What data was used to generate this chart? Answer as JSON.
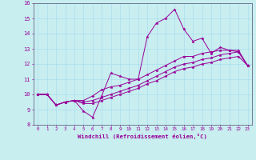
{
  "xlabel": "Windchill (Refroidissement éolien,°C)",
  "bg_color": "#c8eef0",
  "line_color": "#990099",
  "grid_color": "#aaddee",
  "axis_color": "#666688",
  "xlim": [
    -0.5,
    23.5
  ],
  "ylim": [
    8,
    16
  ],
  "xticks": [
    0,
    1,
    2,
    3,
    4,
    5,
    6,
    7,
    8,
    9,
    10,
    11,
    12,
    13,
    14,
    15,
    16,
    17,
    18,
    19,
    20,
    21,
    22,
    23
  ],
  "yticks": [
    8,
    9,
    10,
    11,
    12,
    13,
    14,
    15,
    16
  ],
  "series": [
    [
      10.0,
      10.0,
      9.3,
      9.5,
      9.6,
      8.9,
      8.5,
      9.9,
      11.4,
      11.2,
      11.0,
      11.0,
      13.8,
      14.7,
      15.0,
      15.6,
      14.3,
      13.5,
      13.7,
      12.7,
      13.1,
      12.9,
      12.8,
      11.9
    ],
    [
      10.0,
      10.0,
      9.3,
      9.5,
      9.6,
      9.6,
      9.9,
      10.3,
      10.5,
      10.6,
      10.8,
      11.0,
      11.3,
      11.6,
      11.9,
      12.2,
      12.5,
      12.5,
      12.7,
      12.8,
      12.9,
      12.9,
      12.9,
      11.9
    ],
    [
      10.0,
      10.0,
      9.3,
      9.5,
      9.6,
      9.5,
      9.6,
      9.8,
      10.0,
      10.2,
      10.4,
      10.6,
      10.9,
      11.2,
      11.5,
      11.8,
      12.0,
      12.1,
      12.3,
      12.4,
      12.6,
      12.7,
      12.8,
      11.9
    ],
    [
      10.0,
      10.0,
      9.3,
      9.5,
      9.6,
      9.4,
      9.4,
      9.6,
      9.8,
      10.0,
      10.2,
      10.4,
      10.7,
      10.9,
      11.2,
      11.5,
      11.7,
      11.8,
      12.0,
      12.1,
      12.3,
      12.4,
      12.5,
      11.9
    ]
  ]
}
